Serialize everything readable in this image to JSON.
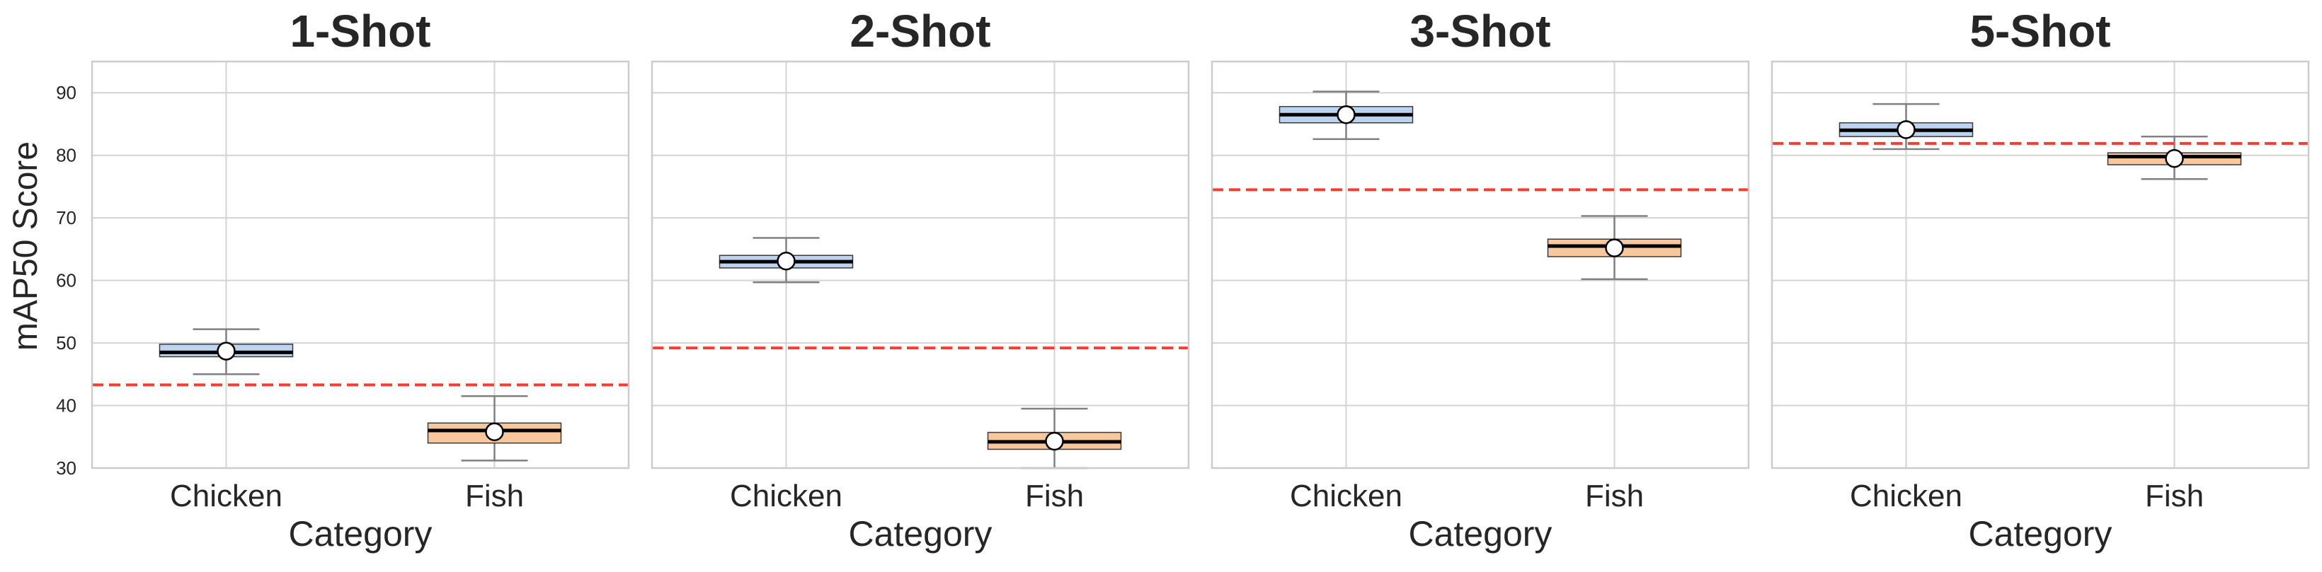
{
  "figure": {
    "ylabel": "mAP50 Score"
  },
  "colors": {
    "chicken_box": "#bcd4f2",
    "fish_box": "#f9c79c",
    "grid": "#d3d3d3",
    "whisker": "#808080",
    "median": "#000000",
    "mean_marker_fill": "#ffffff",
    "reference_line": "#ff3b30",
    "title": "#262626"
  },
  "chart_data": [
    {
      "type": "box",
      "title": "1-Shot",
      "xlabel": "Category",
      "ylabel": "mAP50 Score",
      "ylim": [
        30,
        95
      ],
      "yticks": [
        30,
        40,
        50,
        60,
        70,
        80,
        90
      ],
      "grid": true,
      "categories": [
        "Chicken",
        "Fish"
      ],
      "boxes": [
        {
          "category": "Chicken",
          "whisker_low": 45.0,
          "q1": 47.8,
          "median": 48.5,
          "q3": 49.8,
          "whisker_high": 52.2,
          "mean": 48.7
        },
        {
          "category": "Fish",
          "whisker_low": 31.2,
          "q1": 34.0,
          "median": 36.0,
          "q3": 37.2,
          "whisker_high": 41.5,
          "mean": 35.8
        }
      ],
      "reference_line": 43.3
    },
    {
      "type": "box",
      "title": "2-Shot",
      "xlabel": "Category",
      "ylabel": "",
      "ylim": [
        30,
        95
      ],
      "yticks": [
        30,
        40,
        50,
        60,
        70,
        80,
        90
      ],
      "grid": true,
      "categories": [
        "Chicken",
        "Fish"
      ],
      "boxes": [
        {
          "category": "Chicken",
          "whisker_low": 59.7,
          "q1": 62.0,
          "median": 63.0,
          "q3": 64.0,
          "whisker_high": 66.8,
          "mean": 63.1
        },
        {
          "category": "Fish",
          "whisker_low": 30.0,
          "q1": 33.0,
          "median": 34.2,
          "q3": 35.7,
          "whisker_high": 39.5,
          "mean": 34.3
        }
      ],
      "reference_line": 49.2
    },
    {
      "type": "box",
      "title": "3-Shot",
      "xlabel": "Category",
      "ylabel": "",
      "ylim": [
        30,
        95
      ],
      "yticks": [
        30,
        40,
        50,
        60,
        70,
        80,
        90
      ],
      "grid": true,
      "categories": [
        "Chicken",
        "Fish"
      ],
      "boxes": [
        {
          "category": "Chicken",
          "whisker_low": 82.6,
          "q1": 85.2,
          "median": 86.5,
          "q3": 87.8,
          "whisker_high": 90.2,
          "mean": 86.5
        },
        {
          "category": "Fish",
          "whisker_low": 60.2,
          "q1": 63.8,
          "median": 65.5,
          "q3": 66.6,
          "whisker_high": 70.3,
          "mean": 65.2
        }
      ],
      "reference_line": 74.5
    },
    {
      "type": "box",
      "title": "5-Shot",
      "xlabel": "Category",
      "ylabel": "",
      "ylim": [
        30,
        95
      ],
      "yticks": [
        30,
        40,
        50,
        60,
        70,
        80,
        90
      ],
      "grid": true,
      "categories": [
        "Chicken",
        "Fish"
      ],
      "boxes": [
        {
          "category": "Chicken",
          "whisker_low": 81.0,
          "q1": 83.0,
          "median": 84.0,
          "q3": 85.2,
          "whisker_high": 88.2,
          "mean": 84.1
        },
        {
          "category": "Fish",
          "whisker_low": 76.2,
          "q1": 78.5,
          "median": 79.8,
          "q3": 80.4,
          "whisker_high": 83.0,
          "mean": 79.5
        }
      ],
      "reference_line": 81.9
    }
  ]
}
